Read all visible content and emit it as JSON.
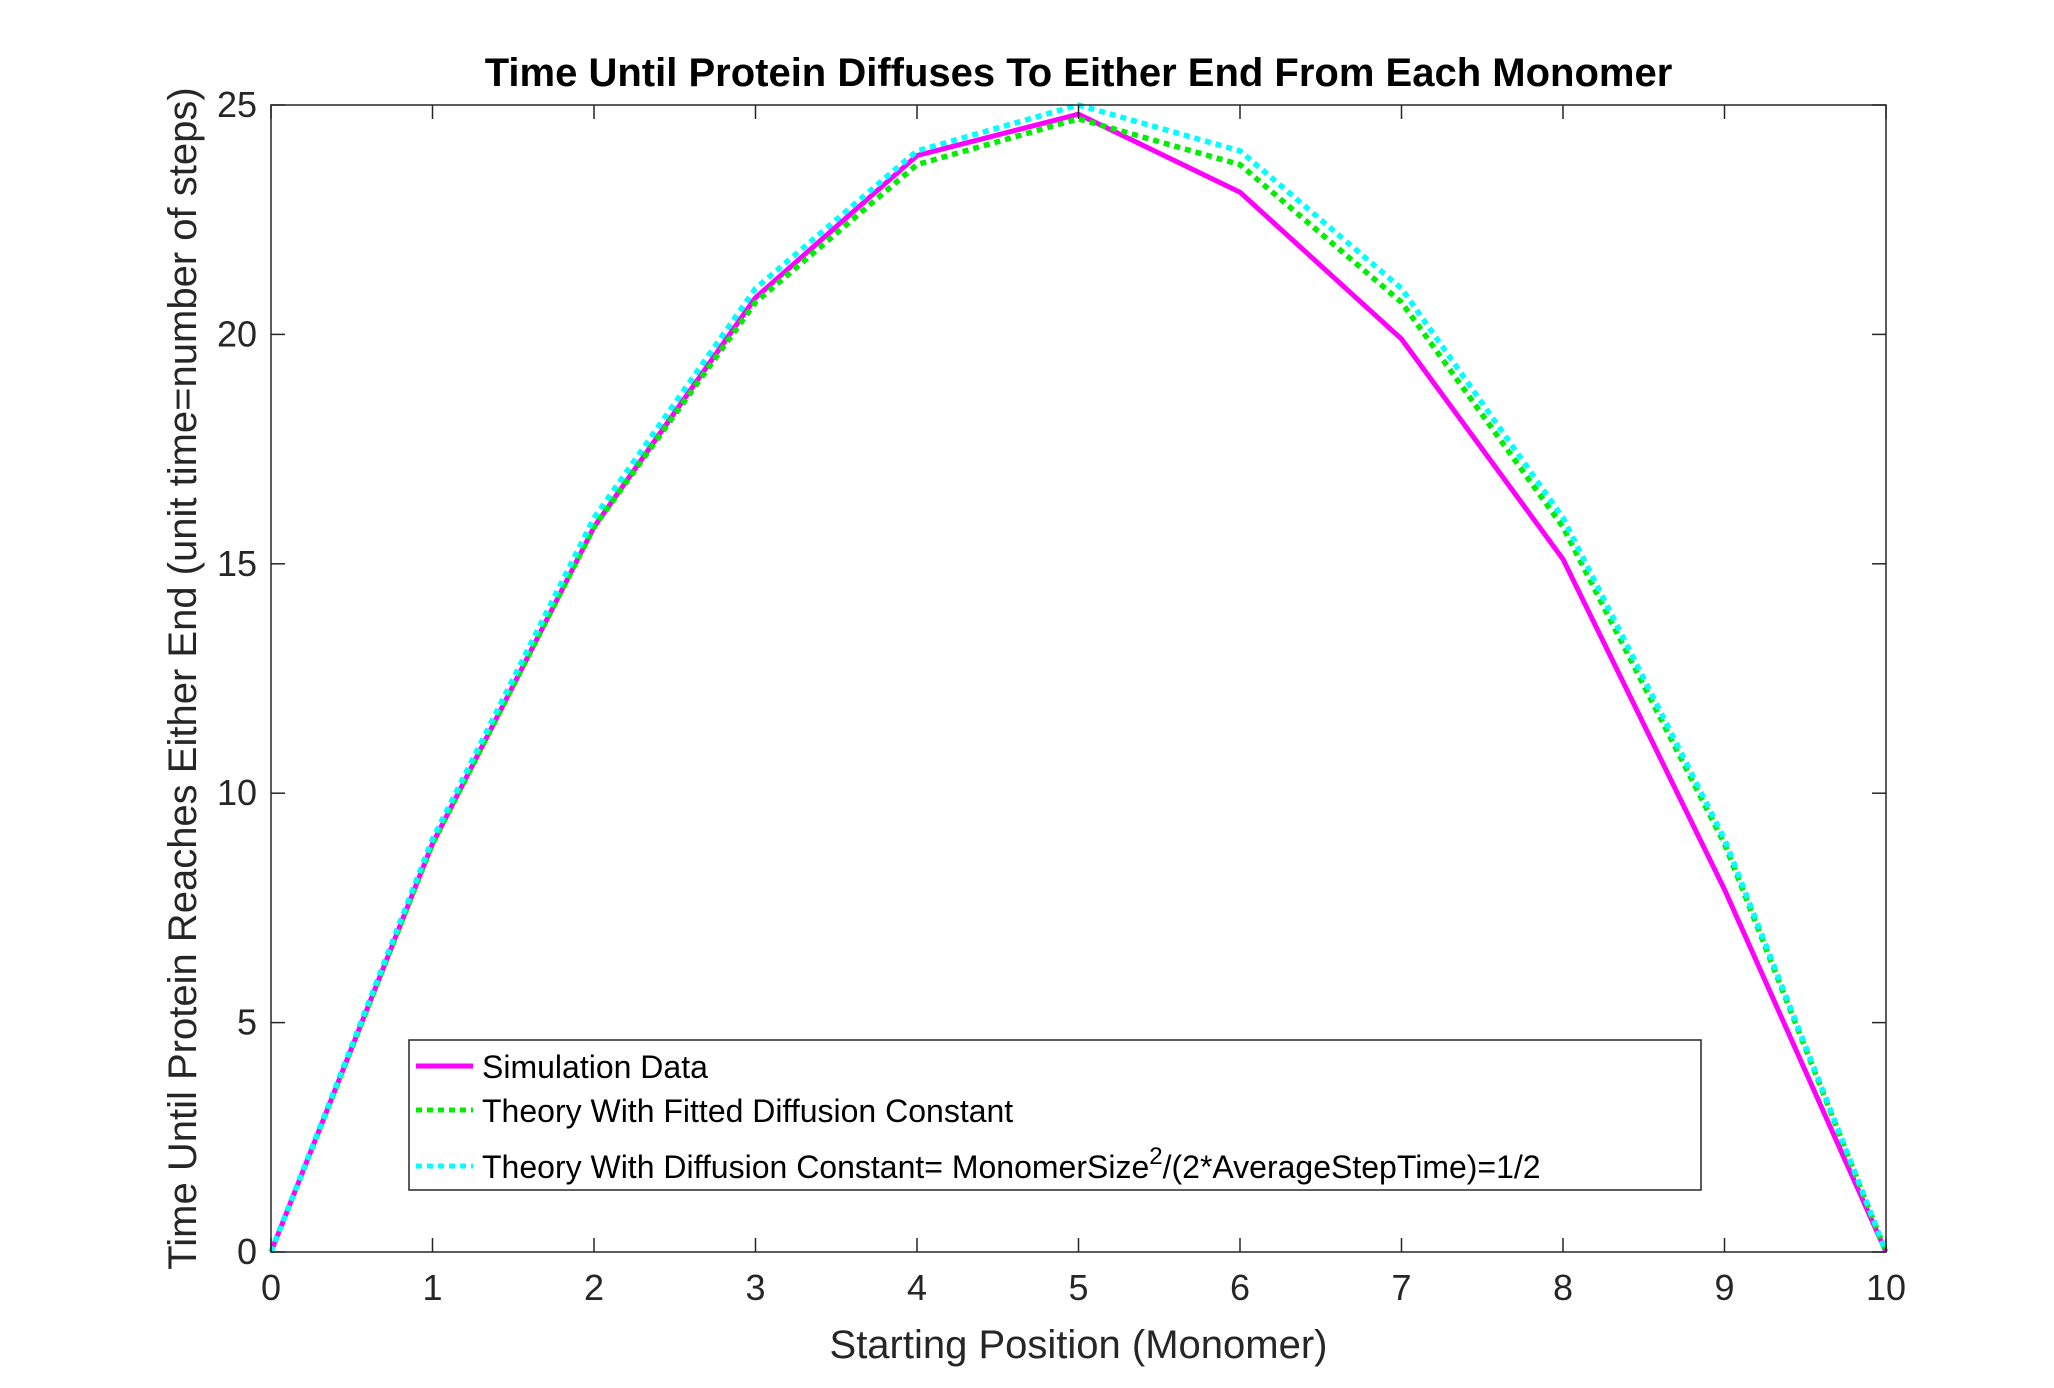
{
  "chart_data": {
    "type": "line",
    "title": "Time Until Protein Diffuses To Either End From Each Monomer",
    "xlabel": "Starting Position (Monomer)",
    "ylabel": "Time Until Protein Reaches Either End (unit time=number of steps)",
    "xlim": [
      0,
      10
    ],
    "ylim": [
      0,
      25
    ],
    "x_ticks": [
      "0",
      "1",
      "2",
      "3",
      "4",
      "5",
      "6",
      "7",
      "8",
      "9",
      "10"
    ],
    "y_ticks": [
      "0",
      "5",
      "10",
      "15",
      "20",
      "25"
    ],
    "x": [
      0,
      1,
      2,
      3,
      4,
      5,
      6,
      7,
      8,
      9,
      10
    ],
    "grid": false,
    "legend_position": "bottom-center",
    "series": [
      {
        "name": "Simulation Data",
        "color": "#ff00ff",
        "style": "solid",
        "values": [
          0,
          8.9,
          15.8,
          20.8,
          23.9,
          24.8,
          23.1,
          19.9,
          15.1,
          7.9,
          0
        ]
      },
      {
        "name": "Theory With Fitted Diffusion Constant",
        "color": "#00ee00",
        "style": "dotted",
        "values": [
          0,
          8.9,
          15.8,
          20.7,
          23.7,
          24.7,
          23.7,
          20.7,
          15.8,
          8.9,
          0
        ]
      },
      {
        "name": "Theory With Diffusion Constant= MonomerSize",
        "name_superscript": "2",
        "name_suffix": "/(2*AverageStepTime)=1/2",
        "color": "#00ffff",
        "style": "dotted",
        "values": [
          0,
          9,
          16,
          21,
          24,
          25,
          24,
          21,
          16,
          9,
          0
        ]
      }
    ]
  }
}
